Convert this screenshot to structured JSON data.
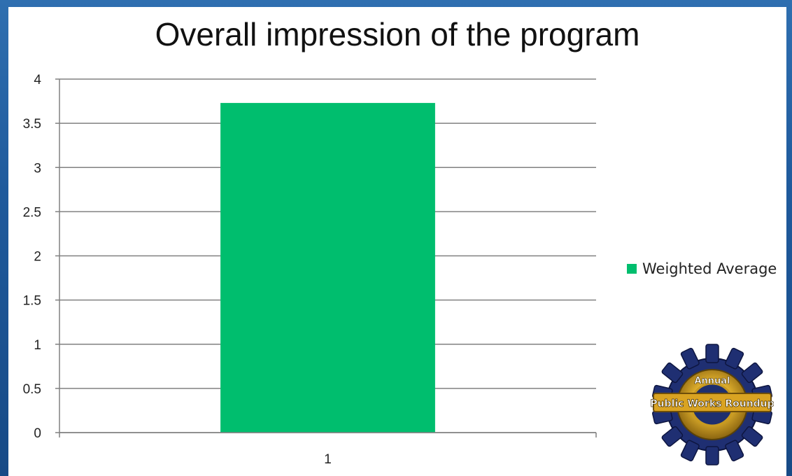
{
  "chart_data": {
    "type": "bar",
    "title": "Overall impression of the program",
    "categories": [
      "1"
    ],
    "series": [
      {
        "name": "Weighted Average",
        "values": [
          3.73
        ],
        "color": "#00be6e"
      }
    ],
    "ylim": [
      0,
      4
    ],
    "yticks": [
      "0",
      "0.5",
      "1",
      "1.5",
      "2",
      "2.5",
      "3",
      "3.5",
      "4"
    ],
    "grid": true,
    "legend_position": "right"
  },
  "colors": {
    "background": "#1f5a9c",
    "bar": "#00be6e",
    "gridline": "#808080"
  },
  "logo": {
    "top_text": "Annual",
    "banner_text": "Public Works Roundup"
  }
}
